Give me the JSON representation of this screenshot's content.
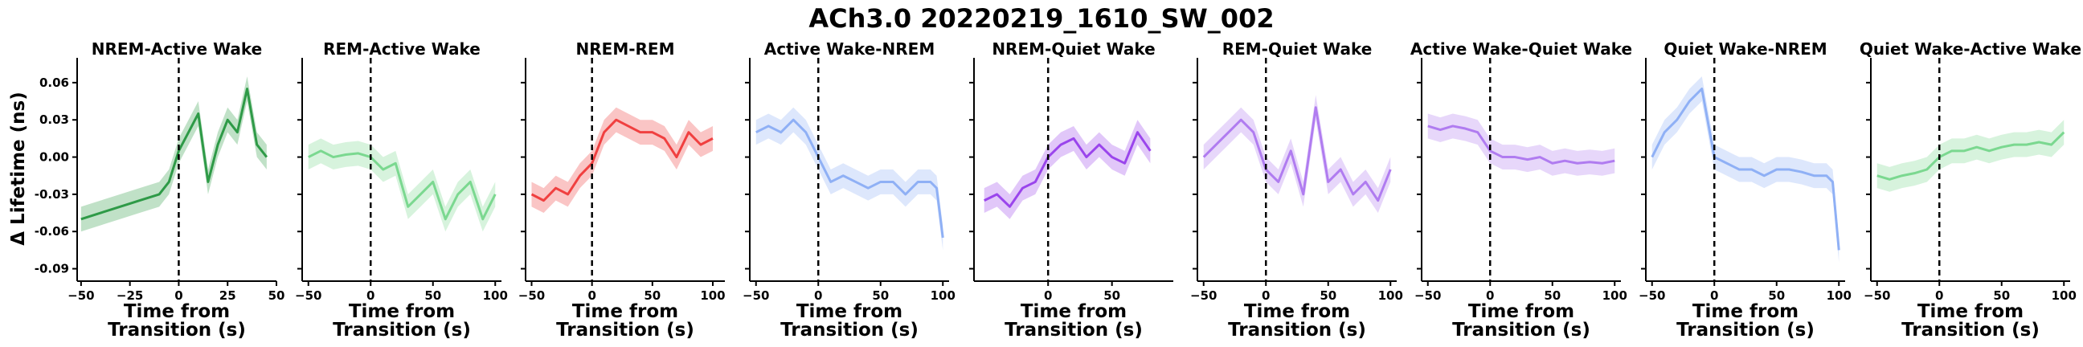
{
  "title": "ACh3.0 20220219_1610_SW_002",
  "ylabel": "Δ Lifetime (ns)",
  "xlabel_line1": "Time from",
  "xlabel_line2": "Transition (s)",
  "chart_data": [
    {
      "type": "line",
      "title": "NREM-Active Wake",
      "color": "#2e9a47",
      "xlim": [
        -52,
        50
      ],
      "xticks": [
        -50,
        -25,
        0,
        25,
        50
      ],
      "ylim": [
        -0.1,
        0.08
      ],
      "yticks": [
        0.06,
        0.03,
        0.0,
        -0.03,
        -0.06,
        -0.09
      ],
      "y_tick_labels": true,
      "x": [
        -50,
        -40,
        -30,
        -20,
        -10,
        -5,
        0,
        5,
        10,
        15,
        20,
        25,
        30,
        35,
        40,
        45
      ],
      "series": [
        {
          "values": [
            -0.05,
            -0.045,
            -0.04,
            -0.035,
            -0.03,
            -0.02,
            0.005,
            0.02,
            0.035,
            -0.02,
            0.01,
            0.03,
            0.02,
            0.055,
            0.01,
            0.0
          ]
        }
      ]
    },
    {
      "type": "line",
      "title": "REM-Active Wake",
      "color": "#7bd890",
      "xlim": [
        -55,
        105
      ],
      "xticks": [
        -50,
        0,
        50,
        100
      ],
      "ylim": [
        -0.1,
        0.08
      ],
      "y_tick_labels": false,
      "x": [
        -50,
        -40,
        -30,
        -20,
        -10,
        0,
        10,
        20,
        30,
        40,
        50,
        60,
        70,
        80,
        90,
        100
      ],
      "series": [
        {
          "values": [
            0.0,
            0.005,
            0.0,
            0.002,
            0.003,
            0.0,
            -0.01,
            -0.005,
            -0.04,
            -0.03,
            -0.02,
            -0.05,
            -0.03,
            -0.02,
            -0.05,
            -0.03
          ]
        }
      ]
    },
    {
      "type": "line",
      "title": "NREM-REM",
      "color": "#f04040",
      "xlim": [
        -55,
        110
      ],
      "xticks": [
        -50,
        0,
        50,
        100
      ],
      "ylim": [
        -0.1,
        0.08
      ],
      "y_tick_labels": false,
      "x": [
        -50,
        -40,
        -30,
        -20,
        -10,
        0,
        10,
        20,
        30,
        40,
        50,
        60,
        70,
        80,
        90,
        100
      ],
      "series": [
        {
          "values": [
            -0.03,
            -0.035,
            -0.025,
            -0.03,
            -0.015,
            -0.005,
            0.02,
            0.03,
            0.025,
            0.02,
            0.02,
            0.015,
            0.0,
            0.02,
            0.01,
            0.015
          ]
        }
      ]
    },
    {
      "type": "line",
      "title": "Active Wake-NREM",
      "color": "#8fb0f5",
      "xlim": [
        -55,
        105
      ],
      "xticks": [
        -50,
        0,
        50,
        100
      ],
      "ylim": [
        -0.1,
        0.08
      ],
      "y_tick_labels": false,
      "x": [
        -50,
        -40,
        -30,
        -20,
        -10,
        0,
        10,
        20,
        30,
        40,
        50,
        60,
        70,
        80,
        90,
        95,
        100
      ],
      "series": [
        {
          "values": [
            0.02,
            0.025,
            0.02,
            0.03,
            0.02,
            0.0,
            -0.02,
            -0.015,
            -0.02,
            -0.025,
            -0.02,
            -0.02,
            -0.03,
            -0.02,
            -0.02,
            -0.025,
            -0.065
          ]
        }
      ]
    },
    {
      "type": "line",
      "title": "NREM-Quiet Wake",
      "color": "#9a45ec",
      "xlim": [
        -58,
        98
      ],
      "xticks": [
        0,
        50
      ],
      "ylim": [
        -0.1,
        0.08
      ],
      "y_tick_labels": false,
      "x": [
        -50,
        -40,
        -30,
        -20,
        -10,
        0,
        10,
        20,
        30,
        40,
        50,
        60,
        70,
        80
      ],
      "series": [
        {
          "values": [
            -0.035,
            -0.03,
            -0.04,
            -0.025,
            -0.02,
            0.0,
            0.01,
            0.015,
            0.0,
            0.01,
            0.0,
            -0.005,
            0.02,
            0.005
          ]
        }
      ]
    },
    {
      "type": "line",
      "title": "REM-Quiet Wake",
      "color": "#b07cf0",
      "xlim": [
        -55,
        105
      ],
      "xticks": [
        -50,
        0,
        50,
        100
      ],
      "ylim": [
        -0.1,
        0.08
      ],
      "y_tick_labels": false,
      "x": [
        -50,
        -40,
        -30,
        -20,
        -10,
        0,
        10,
        20,
        30,
        40,
        50,
        60,
        70,
        80,
        90,
        100
      ],
      "series": [
        {
          "values": [
            0.0,
            0.01,
            0.02,
            0.03,
            0.02,
            -0.01,
            -0.02,
            0.005,
            -0.03,
            0.04,
            -0.02,
            -0.01,
            -0.03,
            -0.02,
            -0.035,
            -0.01
          ]
        }
      ]
    },
    {
      "type": "line",
      "title": "Active Wake-Quiet Wake",
      "color": "#b07cf0",
      "xlim": [
        -55,
        105
      ],
      "xticks": [
        -50,
        0,
        50,
        100
      ],
      "ylim": [
        -0.1,
        0.08
      ],
      "y_tick_labels": false,
      "x": [
        -50,
        -40,
        -30,
        -20,
        -10,
        0,
        10,
        20,
        30,
        40,
        50,
        60,
        70,
        80,
        90,
        100
      ],
      "series": [
        {
          "values": [
            0.025,
            0.022,
            0.025,
            0.023,
            0.02,
            0.005,
            0.0,
            0.0,
            -0.002,
            0.0,
            -0.005,
            -0.003,
            -0.005,
            -0.004,
            -0.005,
            -0.003
          ]
        }
      ]
    },
    {
      "type": "line",
      "title": "Quiet Wake-NREM",
      "color": "#8fb0f5",
      "xlim": [
        -55,
        105
      ],
      "xticks": [
        -50,
        0,
        50,
        100
      ],
      "ylim": [
        -0.1,
        0.08
      ],
      "y_tick_labels": false,
      "x": [
        -50,
        -40,
        -30,
        -20,
        -10,
        0,
        10,
        20,
        30,
        40,
        50,
        60,
        70,
        80,
        90,
        95,
        100
      ],
      "series": [
        {
          "values": [
            0.0,
            0.02,
            0.03,
            0.045,
            0.055,
            0.0,
            -0.005,
            -0.01,
            -0.01,
            -0.015,
            -0.01,
            -0.01,
            -0.012,
            -0.015,
            -0.015,
            -0.02,
            -0.075
          ]
        }
      ]
    },
    {
      "type": "line",
      "title": "Quiet Wake-Active Wake",
      "color": "#7bd890",
      "xlim": [
        -55,
        105
      ],
      "xticks": [
        -50,
        0,
        50,
        100
      ],
      "ylim": [
        -0.1,
        0.08
      ],
      "y_tick_labels": false,
      "x": [
        -50,
        -40,
        -30,
        -20,
        -10,
        0,
        10,
        20,
        30,
        40,
        50,
        60,
        70,
        80,
        90,
        100
      ],
      "series": [
        {
          "values": [
            -0.015,
            -0.018,
            -0.015,
            -0.013,
            -0.01,
            0.0,
            0.005,
            0.005,
            0.008,
            0.005,
            0.008,
            0.01,
            0.01,
            0.012,
            0.01,
            0.02
          ]
        }
      ]
    }
  ]
}
